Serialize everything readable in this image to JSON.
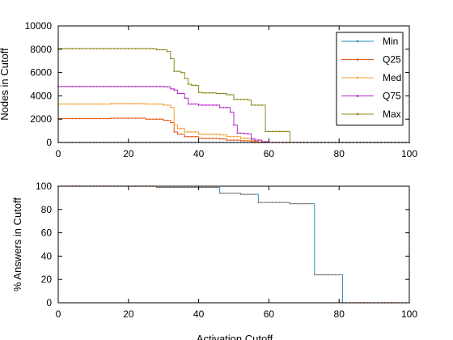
{
  "chart_data": [
    {
      "type": "line",
      "xlabel": "",
      "ylabel": "Nodes in Cutoff",
      "xlim": [
        0,
        100
      ],
      "ylim": [
        0,
        10000
      ],
      "xticks": [
        0,
        20,
        40,
        60,
        80,
        100
      ],
      "yticks": [
        0,
        2000,
        4000,
        6000,
        8000,
        10000
      ],
      "legend_position": "top-right",
      "series": [
        {
          "name": "Min",
          "color": "#2a8fbd",
          "x": [
            0,
            100
          ],
          "y": [
            0,
            0
          ]
        },
        {
          "name": "Q25",
          "color": "#e35f1c",
          "x": [
            0,
            15,
            25,
            30,
            32,
            33,
            34,
            36,
            40,
            46,
            48,
            52,
            55,
            57,
            58,
            100
          ],
          "y": [
            2050,
            2080,
            2000,
            1900,
            1700,
            900,
            700,
            500,
            350,
            300,
            200,
            150,
            80,
            30,
            0,
            0
          ]
        },
        {
          "name": "Med",
          "color": "#f2a23a",
          "x": [
            0,
            15,
            25,
            30,
            32,
            33,
            34,
            36,
            40,
            46,
            48,
            52,
            55,
            58,
            60,
            100
          ],
          "y": [
            3300,
            3330,
            3300,
            3200,
            3000,
            1500,
            1200,
            900,
            700,
            650,
            500,
            350,
            200,
            80,
            0,
            0
          ]
        },
        {
          "name": "Q75",
          "color": "#b42cc8",
          "x": [
            0,
            25,
            30,
            32,
            33,
            34,
            36,
            37,
            40,
            46,
            49,
            50,
            51,
            53,
            55,
            56,
            58,
            60,
            100
          ],
          "y": [
            4800,
            4800,
            4780,
            4600,
            4500,
            4200,
            3800,
            3300,
            3200,
            3000,
            2600,
            1500,
            800,
            750,
            300,
            200,
            50,
            0,
            0
          ]
        },
        {
          "name": "Max",
          "color": "#8f8a1f",
          "x": [
            0,
            20,
            28,
            31,
            32,
            33,
            35,
            36,
            37,
            38,
            40,
            41,
            45,
            48,
            50,
            54,
            55,
            58,
            59,
            65,
            66,
            100
          ],
          "y": [
            8050,
            8050,
            7950,
            7800,
            7200,
            6100,
            6000,
            5500,
            5000,
            4900,
            4300,
            4250,
            4200,
            4100,
            3700,
            3650,
            3200,
            3200,
            950,
            950,
            0,
            0
          ]
        }
      ]
    },
    {
      "type": "line",
      "xlabel": "Activation Cutoff",
      "ylabel": "% Answers in Cutoff",
      "xlim": [
        0,
        100
      ],
      "ylim": [
        0,
        100
      ],
      "xticks": [
        0,
        20,
        40,
        60,
        80,
        100
      ],
      "yticks": [
        0,
        20,
        40,
        60,
        80,
        100
      ],
      "series": [
        {
          "color": "#2a8fbd",
          "marker_color": "#e35f1c",
          "x": [
            0,
            26,
            28,
            44,
            46,
            51,
            52,
            56,
            57,
            65,
            66,
            72,
            73,
            80,
            81,
            100
          ],
          "y": [
            100,
            100,
            99,
            99,
            94,
            94,
            93,
            93,
            86,
            86,
            85,
            85,
            24,
            24,
            0,
            0
          ]
        }
      ]
    }
  ]
}
